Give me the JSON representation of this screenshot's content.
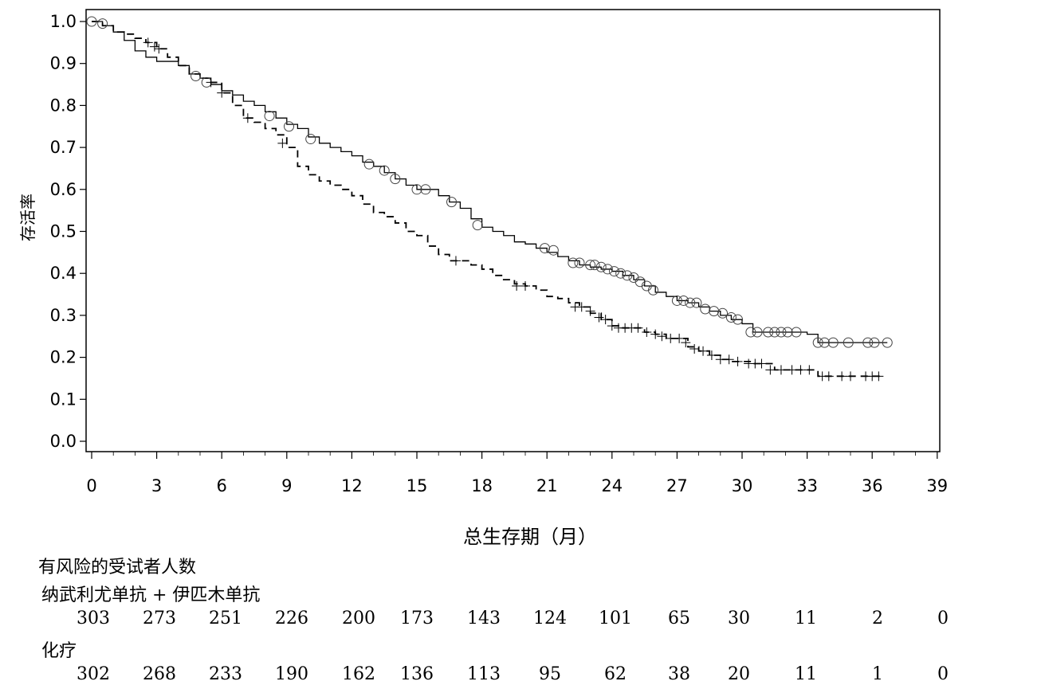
{
  "chart_data": {
    "type": "line",
    "subtype": "kaplan-meier",
    "title": "",
    "xlabel": "总生存期（月）",
    "ylabel": "存活率",
    "xlim": [
      0,
      39
    ],
    "ylim": [
      0,
      1.0
    ],
    "xticks": [
      0,
      3,
      6,
      9,
      12,
      15,
      18,
      21,
      24,
      27,
      30,
      33,
      36,
      39
    ],
    "yticks": [
      "0.0",
      "0.1",
      "0.2",
      "0.3",
      "0.4",
      "0.5",
      "0.6",
      "0.7",
      "0.8",
      "0.9",
      "1.0"
    ],
    "grid": false,
    "series": [
      {
        "line_style": "solid",
        "censor_marker": "circle",
        "points": [
          [
            0,
            1.0
          ],
          [
            0.5,
            0.99
          ],
          [
            1.0,
            0.975
          ],
          [
            1.5,
            0.955
          ],
          [
            2.0,
            0.93
          ],
          [
            2.5,
            0.915
          ],
          [
            3.0,
            0.905
          ],
          [
            3.5,
            0.905
          ],
          [
            4.0,
            0.895
          ],
          [
            4.5,
            0.875
          ],
          [
            5.0,
            0.865
          ],
          [
            5.5,
            0.85
          ],
          [
            6.0,
            0.835
          ],
          [
            6.5,
            0.825
          ],
          [
            7.0,
            0.81
          ],
          [
            7.5,
            0.8
          ],
          [
            8.0,
            0.785
          ],
          [
            8.5,
            0.77
          ],
          [
            9.0,
            0.755
          ],
          [
            9.5,
            0.745
          ],
          [
            10.0,
            0.725
          ],
          [
            10.5,
            0.71
          ],
          [
            11.0,
            0.7
          ],
          [
            11.5,
            0.69
          ],
          [
            12.0,
            0.68
          ],
          [
            12.5,
            0.665
          ],
          [
            13.0,
            0.655
          ],
          [
            13.5,
            0.64
          ],
          [
            14.0,
            0.625
          ],
          [
            14.5,
            0.61
          ],
          [
            15.0,
            0.6
          ],
          [
            15.5,
            0.6
          ],
          [
            16.0,
            0.585
          ],
          [
            16.5,
            0.57
          ],
          [
            17.0,
            0.555
          ],
          [
            17.5,
            0.53
          ],
          [
            18.0,
            0.51
          ],
          [
            18.5,
            0.5
          ],
          [
            19.0,
            0.49
          ],
          [
            19.5,
            0.475
          ],
          [
            20.0,
            0.47
          ],
          [
            20.5,
            0.46
          ],
          [
            21.0,
            0.45
          ],
          [
            21.5,
            0.44
          ],
          [
            22.0,
            0.43
          ],
          [
            22.5,
            0.42
          ],
          [
            23.0,
            0.415
          ],
          [
            23.5,
            0.41
          ],
          [
            24.0,
            0.405
          ],
          [
            24.5,
            0.395
          ],
          [
            25.0,
            0.385
          ],
          [
            25.5,
            0.37
          ],
          [
            26.0,
            0.355
          ],
          [
            26.5,
            0.345
          ],
          [
            27.0,
            0.335
          ],
          [
            27.5,
            0.33
          ],
          [
            28.0,
            0.32
          ],
          [
            28.5,
            0.31
          ],
          [
            29.0,
            0.3
          ],
          [
            29.5,
            0.29
          ],
          [
            30.0,
            0.28
          ],
          [
            30.5,
            0.26
          ],
          [
            31.0,
            0.26
          ],
          [
            32.0,
            0.26
          ],
          [
            32.5,
            0.26
          ],
          [
            33.0,
            0.255
          ],
          [
            33.5,
            0.235
          ],
          [
            34.0,
            0.235
          ],
          [
            35.0,
            0.235
          ],
          [
            36.0,
            0.235
          ],
          [
            36.7,
            0.235
          ]
        ],
        "censored": [
          [
            0.0,
            1.0
          ],
          [
            0.5,
            0.995
          ],
          [
            4.8,
            0.87
          ],
          [
            5.3,
            0.855
          ],
          [
            8.2,
            0.775
          ],
          [
            9.1,
            0.75
          ],
          [
            10.1,
            0.72
          ],
          [
            12.8,
            0.66
          ],
          [
            13.5,
            0.645
          ],
          [
            14.0,
            0.625
          ],
          [
            15.0,
            0.6
          ],
          [
            15.4,
            0.6
          ],
          [
            16.6,
            0.57
          ],
          [
            17.8,
            0.515
          ],
          [
            20.9,
            0.46
          ],
          [
            21.3,
            0.455
          ],
          [
            22.2,
            0.425
          ],
          [
            22.5,
            0.425
          ],
          [
            23.0,
            0.42
          ],
          [
            23.2,
            0.42
          ],
          [
            23.5,
            0.415
          ],
          [
            23.8,
            0.41
          ],
          [
            24.1,
            0.405
          ],
          [
            24.4,
            0.4
          ],
          [
            24.7,
            0.395
          ],
          [
            25.0,
            0.39
          ],
          [
            25.3,
            0.38
          ],
          [
            25.6,
            0.37
          ],
          [
            25.9,
            0.36
          ],
          [
            27.0,
            0.335
          ],
          [
            27.3,
            0.335
          ],
          [
            27.6,
            0.33
          ],
          [
            27.9,
            0.33
          ],
          [
            28.3,
            0.315
          ],
          [
            28.7,
            0.31
          ],
          [
            29.1,
            0.305
          ],
          [
            29.5,
            0.295
          ],
          [
            29.8,
            0.29
          ],
          [
            30.4,
            0.26
          ],
          [
            30.7,
            0.26
          ],
          [
            31.2,
            0.26
          ],
          [
            31.5,
            0.26
          ],
          [
            31.8,
            0.26
          ],
          [
            32.1,
            0.26
          ],
          [
            32.5,
            0.26
          ],
          [
            33.5,
            0.235
          ],
          [
            33.8,
            0.235
          ],
          [
            34.2,
            0.235
          ],
          [
            34.9,
            0.235
          ],
          [
            35.8,
            0.235
          ],
          [
            36.1,
            0.235
          ],
          [
            36.7,
            0.235
          ]
        ]
      },
      {
        "line_style": "dashed",
        "censor_marker": "plus",
        "points": [
          [
            0,
            1.0
          ],
          [
            0.5,
            0.99
          ],
          [
            1.0,
            0.975
          ],
          [
            1.5,
            0.97
          ],
          [
            2.0,
            0.96
          ],
          [
            2.5,
            0.95
          ],
          [
            3.0,
            0.935
          ],
          [
            3.5,
            0.915
          ],
          [
            4.0,
            0.895
          ],
          [
            4.5,
            0.875
          ],
          [
            5.0,
            0.865
          ],
          [
            5.5,
            0.855
          ],
          [
            6.0,
            0.83
          ],
          [
            6.5,
            0.8
          ],
          [
            7.0,
            0.77
          ],
          [
            7.5,
            0.76
          ],
          [
            8.0,
            0.745
          ],
          [
            8.5,
            0.73
          ],
          [
            9.0,
            0.7
          ],
          [
            9.5,
            0.655
          ],
          [
            10.0,
            0.635
          ],
          [
            10.5,
            0.62
          ],
          [
            11.0,
            0.61
          ],
          [
            11.5,
            0.6
          ],
          [
            12.0,
            0.585
          ],
          [
            12.5,
            0.565
          ],
          [
            13.0,
            0.545
          ],
          [
            13.5,
            0.535
          ],
          [
            14.0,
            0.52
          ],
          [
            14.5,
            0.5
          ],
          [
            15.0,
            0.49
          ],
          [
            15.5,
            0.465
          ],
          [
            16.0,
            0.445
          ],
          [
            16.5,
            0.43
          ],
          [
            17.0,
            0.43
          ],
          [
            17.5,
            0.42
          ],
          [
            18.0,
            0.41
          ],
          [
            18.5,
            0.395
          ],
          [
            19.0,
            0.385
          ],
          [
            19.5,
            0.375
          ],
          [
            20.0,
            0.37
          ],
          [
            20.5,
            0.36
          ],
          [
            21.0,
            0.345
          ],
          [
            21.5,
            0.34
          ],
          [
            22.0,
            0.33
          ],
          [
            22.5,
            0.32
          ],
          [
            23.0,
            0.305
          ],
          [
            23.5,
            0.29
          ],
          [
            24.0,
            0.275
          ],
          [
            24.5,
            0.27
          ],
          [
            25.0,
            0.27
          ],
          [
            25.5,
            0.26
          ],
          [
            26.0,
            0.255
          ],
          [
            26.5,
            0.245
          ],
          [
            27.0,
            0.245
          ],
          [
            27.5,
            0.225
          ],
          [
            28.0,
            0.215
          ],
          [
            28.5,
            0.205
          ],
          [
            29.0,
            0.195
          ],
          [
            29.5,
            0.19
          ],
          [
            30.0,
            0.19
          ],
          [
            30.5,
            0.185
          ],
          [
            31.0,
            0.185
          ],
          [
            31.5,
            0.17
          ],
          [
            32.0,
            0.17
          ],
          [
            33.0,
            0.17
          ],
          [
            33.5,
            0.155
          ],
          [
            34.0,
            0.155
          ],
          [
            35.0,
            0.155
          ],
          [
            36.0,
            0.155
          ],
          [
            36.4,
            0.155
          ]
        ],
        "censored": [
          [
            2.6,
            0.95
          ],
          [
            2.9,
            0.94
          ],
          [
            3.1,
            0.935
          ],
          [
            5.5,
            0.855
          ],
          [
            6.0,
            0.83
          ],
          [
            7.2,
            0.77
          ],
          [
            8.8,
            0.71
          ],
          [
            16.8,
            0.43
          ],
          [
            19.6,
            0.37
          ],
          [
            20.0,
            0.37
          ],
          [
            22.3,
            0.32
          ],
          [
            22.6,
            0.32
          ],
          [
            23.0,
            0.31
          ],
          [
            23.4,
            0.295
          ],
          [
            23.7,
            0.29
          ],
          [
            24.0,
            0.275
          ],
          [
            24.3,
            0.27
          ],
          [
            24.6,
            0.27
          ],
          [
            24.9,
            0.27
          ],
          [
            25.2,
            0.27
          ],
          [
            25.6,
            0.26
          ],
          [
            26.0,
            0.255
          ],
          [
            26.3,
            0.25
          ],
          [
            26.7,
            0.245
          ],
          [
            27.1,
            0.245
          ],
          [
            27.4,
            0.235
          ],
          [
            27.8,
            0.22
          ],
          [
            28.2,
            0.215
          ],
          [
            28.6,
            0.205
          ],
          [
            29.0,
            0.195
          ],
          [
            29.4,
            0.195
          ],
          [
            29.8,
            0.19
          ],
          [
            30.3,
            0.185
          ],
          [
            30.6,
            0.185
          ],
          [
            30.9,
            0.185
          ],
          [
            31.3,
            0.17
          ],
          [
            31.8,
            0.17
          ],
          [
            32.3,
            0.17
          ],
          [
            32.7,
            0.17
          ],
          [
            33.1,
            0.17
          ],
          [
            33.7,
            0.155
          ],
          [
            34.0,
            0.155
          ],
          [
            34.6,
            0.155
          ],
          [
            35.0,
            0.155
          ],
          [
            35.7,
            0.155
          ],
          [
            36.0,
            0.155
          ],
          [
            36.3,
            0.155
          ]
        ]
      }
    ],
    "risk_table": {
      "title": "有风险的受试者人数",
      "groups": [
        {
          "label": "纳武利尤单抗 + 伊匹木单抗",
          "counts": [
            "303",
            "273",
            "251",
            "226",
            "200",
            "173",
            "143",
            "124",
            "101",
            "65",
            "30",
            "11",
            "2",
            "0"
          ]
        },
        {
          "label": "化疗",
          "counts": [
            "302",
            "268",
            "233",
            "190",
            "162",
            "136",
            "113",
            "95",
            "62",
            "38",
            "20",
            "11",
            "1",
            "0"
          ]
        }
      ]
    }
  }
}
